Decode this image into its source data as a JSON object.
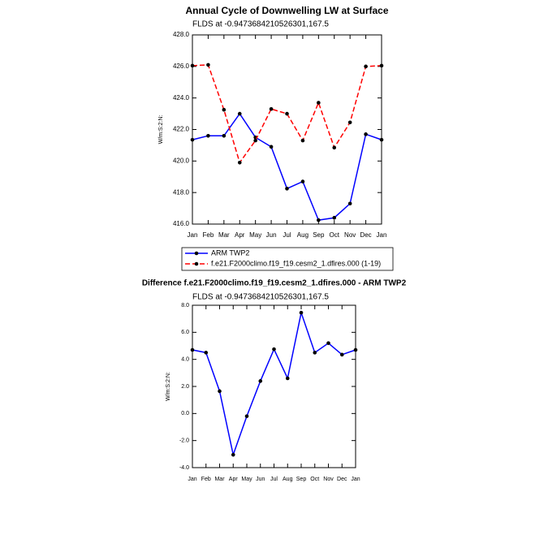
{
  "chart_data": [
    {
      "type": "line",
      "title": "Annual Cycle of Downwelling LW at Surface",
      "subtitle": "FLDS at -0.9473684210526301,167.5",
      "y_label": "W/m:S:2:N:",
      "categories": [
        "Jan",
        "Feb",
        "Mar",
        "Apr",
        "May",
        "Jun",
        "Jul",
        "Aug",
        "Sep",
        "Oct",
        "Nov",
        "Dec",
        "Jan"
      ],
      "series": [
        {
          "name": "ARM TWP2",
          "color": "#0000ff",
          "dashed": false,
          "values": [
            421.35,
            421.6,
            421.6,
            423.0,
            421.5,
            420.9,
            418.25,
            418.7,
            416.25,
            416.4,
            417.3,
            421.7,
            421.35
          ]
        },
        {
          "name": "f.e21.F2000climo.f19_f19.cesm2_1.dfires.000 (1-19)",
          "color": "#ff0000",
          "dashed": true,
          "values": [
            426.05,
            426.1,
            423.25,
            419.9,
            421.3,
            423.3,
            423.0,
            421.3,
            423.7,
            420.85,
            422.45,
            426.0,
            426.05
          ]
        }
      ],
      "ylim": [
        416,
        428
      ],
      "yticks": [
        {
          "value": 416,
          "label": "416.0"
        },
        {
          "value": 418,
          "label": "418.0"
        },
        {
          "value": 420,
          "label": "420.0"
        },
        {
          "value": 422,
          "label": "422.0"
        },
        {
          "value": 424,
          "label": "424.0"
        },
        {
          "value": 426,
          "label": "426.0"
        },
        {
          "value": 428,
          "label": "428.0"
        }
      ],
      "legend": "below"
    },
    {
      "type": "line",
      "title": "Difference f.e21.F2000climo.f19_f19.cesm2_1.dfires.000 - ARM TWP2",
      "subtitle": "FLDS at -0.9473684210526301,167.5",
      "y_label": "W/m:S:2:N:",
      "categories": [
        "Jan",
        "Feb",
        "Mar",
        "Apr",
        "May",
        "Jun",
        "Jul",
        "Aug",
        "Sep",
        "Oct",
        "Nov",
        "Dec",
        "Jan"
      ],
      "color": "#0000ff",
      "values": [
        4.7,
        4.5,
        1.65,
        -3.05,
        -0.2,
        2.4,
        4.75,
        2.6,
        7.45,
        4.5,
        5.2,
        4.35,
        4.7
      ],
      "ylim": [
        -4,
        8
      ],
      "yticks": [
        {
          "value": -4,
          "label": "-4.0"
        },
        {
          "value": -2,
          "label": "-2.0"
        },
        {
          "value": 0,
          "label": "0.0"
        },
        {
          "value": 2,
          "label": "2.0"
        },
        {
          "value": 4,
          "label": "4.0"
        },
        {
          "value": 6,
          "label": "6.0"
        },
        {
          "value": 8,
          "label": "8.0"
        }
      ]
    }
  ]
}
